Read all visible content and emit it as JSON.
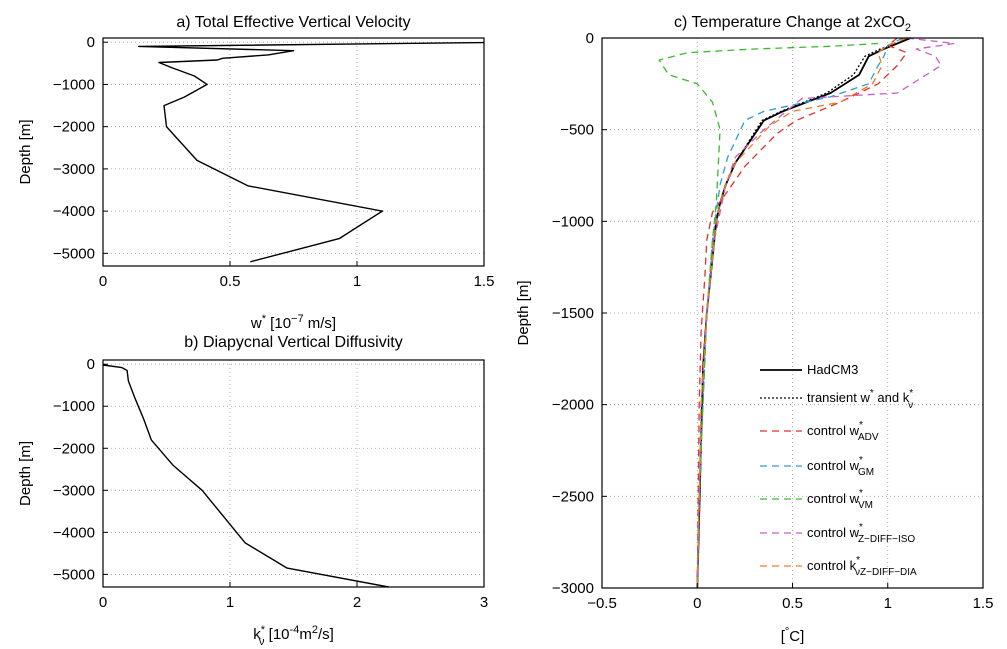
{
  "chart_data": [
    {
      "id": "a",
      "type": "line",
      "title": "a) Total Effective Vertical Velocity",
      "xlabel": "w* [10^-7 m/s]",
      "xlabel_parts": {
        "base": "w",
        "sup1": "*",
        "bracket_open": " [10",
        "sup2": "−7",
        "tail": " m/s]"
      },
      "ylabel": "Depth [m]",
      "xlim": [
        0,
        1.5
      ],
      "ylim": [
        -5300,
        100
      ],
      "xticks": [
        "0",
        "0.5",
        "1",
        "1.5"
      ],
      "xtick_values": [
        0,
        0.5,
        1,
        1.5
      ],
      "yticks": [
        "0",
        "−1000",
        "−2000",
        "−3000",
        "−4000",
        "−5000"
      ],
      "ytick_values": [
        0,
        -1000,
        -2000,
        -3000,
        -4000,
        -5000
      ],
      "grid": true,
      "series": [
        {
          "color": "#000000",
          "dash": "solid",
          "x": [
            1.5,
            0.14,
            0.75,
            0.65,
            0.47,
            0.45,
            0.22,
            0.27,
            0.36,
            0.41,
            0.32,
            0.24,
            0.25,
            0.28,
            0.37,
            0.57,
            1.1,
            0.93,
            0.58
          ],
          "y": [
            -10,
            -100,
            -200,
            -300,
            -380,
            -420,
            -480,
            -600,
            -800,
            -1000,
            -1300,
            -1500,
            -2000,
            -2200,
            -2800,
            -3400,
            -4000,
            -4650,
            -5200
          ]
        }
      ]
    },
    {
      "id": "b",
      "type": "line",
      "title": "b) Diapycnal Vertical Diffusivity",
      "xlabel": "kν* [10^-4 m^2/s]",
      "xlabel_parts": {
        "base": "k",
        "sub": "ν",
        "sup1": "*",
        "bracket_open": " [10",
        "sup2": "-4",
        "mid": "m",
        "sup3": "2",
        "tail": "/s]"
      },
      "ylabel": "Depth [m]",
      "xlim": [
        0,
        3
      ],
      "ylim": [
        -5300,
        100
      ],
      "xticks": [
        "0",
        "1",
        "2",
        "3"
      ],
      "xtick_values": [
        0,
        1,
        2,
        3
      ],
      "yticks": [
        "0",
        "−1000",
        "−2000",
        "−3000",
        "−4000",
        "−5000"
      ],
      "ytick_values": [
        0,
        -1000,
        -2000,
        -3000,
        -4000,
        -5000
      ],
      "grid": true,
      "series": [
        {
          "color": "#000000",
          "dash": "solid",
          "x": [
            0.0,
            0.15,
            0.19,
            0.2,
            0.25,
            0.32,
            0.38,
            0.55,
            0.78,
            1.12,
            1.45,
            2.25
          ],
          "y": [
            -20,
            -80,
            -150,
            -400,
            -800,
            -1300,
            -1800,
            -2400,
            -3000,
            -4250,
            -4850,
            -5300
          ]
        }
      ]
    },
    {
      "id": "c",
      "type": "line",
      "title": "c) Temperature Change at 2xCO2",
      "title_parts": {
        "main": "c) Temperature Change at 2xCO",
        "sub": "2"
      },
      "xlabel": "[°C]",
      "xlabel_parts": {
        "open": "[",
        "sup": "°",
        "tail": "C]"
      },
      "ylabel": "Depth [m]",
      "xlim": [
        -0.5,
        1.5
      ],
      "ylim": [
        -3000,
        0
      ],
      "xticks": [
        "−0.5",
        "0",
        "0.5",
        "1",
        "1.5"
      ],
      "xtick_values": [
        -0.5,
        0,
        0.5,
        1,
        1.5
      ],
      "yticks": [
        "0",
        "−500",
        "−1000",
        "−1500",
        "−2000",
        "−2500",
        "−3000"
      ],
      "ytick_values": [
        0,
        -500,
        -1000,
        -1500,
        -2000,
        -2500,
        -3000
      ],
      "grid": true,
      "legend_placement": "bottom-right",
      "series": [
        {
          "name": "HadCM3",
          "label_parts": {
            "text": "HadCM3"
          },
          "color": "#000000",
          "dash": "solid",
          "width": 1.8,
          "x": [
            1.12,
            1.05,
            0.98,
            0.9,
            0.85,
            0.7,
            0.45,
            0.35,
            0.2,
            0.15,
            0.12,
            0.1,
            0.08,
            0.05,
            0.03,
            0.02,
            0.01,
            0.0
          ],
          "y": [
            0,
            -30,
            -60,
            -100,
            -200,
            -300,
            -400,
            -450,
            -680,
            -800,
            -900,
            -1000,
            -1200,
            -1500,
            -1800,
            -2200,
            -2600,
            -3000
          ]
        },
        {
          "name": "transient w* and kν*",
          "label_parts": {
            "text": "transient w",
            "sup": "*",
            "mid": " and k",
            "sup2": "*",
            "sub2": "ν"
          },
          "color": "#000000",
          "dash": "dotted",
          "width": 1.3,
          "x": [
            1.12,
            1.05,
            0.96,
            0.88,
            0.82,
            0.68,
            0.44,
            0.34,
            0.2,
            0.15,
            0.12,
            0.1,
            0.08,
            0.05,
            0.03,
            0.02,
            0.01,
            0.0
          ],
          "y": [
            0,
            -30,
            -60,
            -100,
            -200,
            -300,
            -400,
            -450,
            -680,
            -800,
            -900,
            -1000,
            -1200,
            -1500,
            -1800,
            -2200,
            -2600,
            -3000
          ]
        },
        {
          "name": "control w*ADV",
          "label_parts": {
            "text": "control w",
            "sup": "*",
            "sub": "ADV"
          },
          "color": "#e0302a",
          "dash": "dashed",
          "width": 1.3,
          "x": [
            1.05,
            1.0,
            1.1,
            1.05,
            0.95,
            0.75,
            0.52,
            0.42,
            0.25,
            0.15,
            0.08,
            0.05,
            0.04,
            0.02,
            0.01,
            0.005,
            0.0
          ],
          "y": [
            0,
            -40,
            -80,
            -150,
            -250,
            -350,
            -450,
            -520,
            -700,
            -850,
            -950,
            -1100,
            -1300,
            -1600,
            -2000,
            -2500,
            -3000
          ]
        },
        {
          "name": "control w*GM",
          "label_parts": {
            "text": "control w",
            "sup": "*",
            "sub": "GM"
          },
          "color": "#2e9bd6",
          "dash": "dashed",
          "width": 1.3,
          "x": [
            1.08,
            1.0,
            0.98,
            0.95,
            0.9,
            0.7,
            0.35,
            0.25,
            0.16,
            0.12,
            0.1,
            0.08,
            0.05,
            0.03,
            0.01,
            0.0
          ],
          "y": [
            0,
            -40,
            -100,
            -150,
            -250,
            -320,
            -400,
            -450,
            -650,
            -800,
            -950,
            -1100,
            -1500,
            -2000,
            -2500,
            -3000
          ]
        },
        {
          "name": "control w*VM",
          "label_parts": {
            "text": "control w",
            "sup": "*",
            "sub": "VM"
          },
          "color": "#3cb82e",
          "dash": "dashed",
          "width": 1.3,
          "x": [
            0.95,
            0.7,
            0.3,
            -0.05,
            -0.2,
            -0.15,
            0.0,
            0.08,
            0.12,
            0.11,
            0.1,
            0.08,
            0.05,
            0.03,
            0.01,
            0.0
          ],
          "y": [
            -30,
            -45,
            -60,
            -80,
            -120,
            -200,
            -250,
            -350,
            -500,
            -700,
            -900,
            -1100,
            -1500,
            -2000,
            -2500,
            -3000
          ]
        },
        {
          "name": "control w*Z−DIFF−ISO",
          "label_parts": {
            "text": "control w",
            "sup": "*",
            "sub": "Z−DIFF−ISO"
          },
          "color": "#c85cc8",
          "dash": "dashed",
          "width": 1.3,
          "x": [
            1.1,
            1.35,
            1.15,
            1.25,
            1.28,
            1.05,
            0.55,
            0.35,
            0.2,
            0.15,
            0.12,
            0.09,
            0.05,
            0.02,
            0.01,
            0.0
          ],
          "y": [
            0,
            -30,
            -60,
            -100,
            -150,
            -300,
            -330,
            -500,
            -650,
            -800,
            -950,
            -1100,
            -1500,
            -2000,
            -2500,
            -3000
          ]
        },
        {
          "name": "control kν*Z−DIFF−DIA",
          "label_parts": {
            "text": "control k",
            "sup": "*",
            "sub": "νZ−DIFF−DIA"
          },
          "color": "#f07d1f",
          "dash": "dashed",
          "width": 1.3,
          "x": [
            1.1,
            1.0,
            0.95,
            0.97,
            0.92,
            0.75,
            0.5,
            0.38,
            0.2,
            0.15,
            0.12,
            0.1,
            0.08,
            0.05,
            0.02,
            0.01,
            0.0
          ],
          "y": [
            0,
            -40,
            -80,
            -150,
            -250,
            -350,
            -400,
            -480,
            -680,
            -800,
            -900,
            -1000,
            -1200,
            -1500,
            -2000,
            -2500,
            -3000
          ]
        }
      ]
    }
  ]
}
